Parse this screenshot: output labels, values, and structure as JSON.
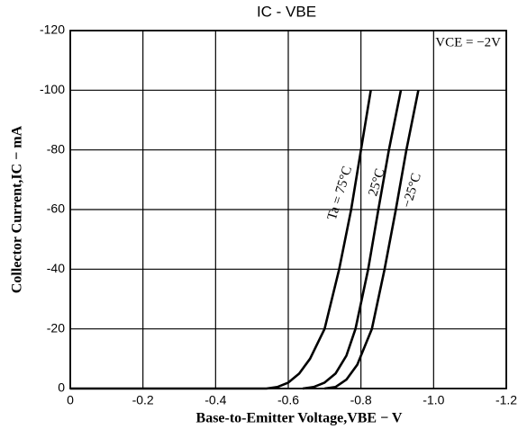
{
  "chart_data": {
    "type": "line",
    "title": "IC  -  VBE",
    "x_label": "Base-to-Emitter Voltage,VBE − V",
    "y_label": "Collector Current,IC − mA",
    "annotations": [
      "VCE = −2V",
      "Ta = 75°C",
      "25°C",
      "−25°C"
    ],
    "xlim": [
      0,
      -1.2
    ],
    "xticks": [
      0,
      -0.2,
      -0.4,
      -0.6,
      -0.8,
      {
        "value": -1,
        "label": "-1.0"
      },
      -1.2
    ],
    "ylim": [
      0,
      -120
    ],
    "yticks": [
      0,
      -20,
      -40,
      -60,
      -80,
      -100,
      -120
    ],
    "grid": true,
    "series": [
      {
        "name": "Ta = 75°C",
        "color": "#000000",
        "x": [
          0,
          -0.54,
          -0.57,
          -0.6,
          -0.63,
          -0.66,
          -0.7,
          -0.74,
          -0.773,
          -0.8,
          -0.827
        ],
        "values": [
          0,
          0,
          -0.5,
          -2,
          -5,
          -10,
          -20,
          -40,
          -60,
          -80,
          -100
        ]
      },
      {
        "name": "25°C",
        "color": "#000000",
        "x": [
          -0.64,
          -0.67,
          -0.7,
          -0.73,
          -0.76,
          -0.785,
          -0.82,
          -0.848,
          -0.877,
          -0.91
        ],
        "values": [
          0,
          -0.5,
          -2,
          -5,
          -11,
          -20,
          -40,
          -60,
          -80,
          -100
        ]
      },
      {
        "name": "−25°C",
        "color": "#000000",
        "x": [
          -0.7,
          -0.73,
          -0.76,
          -0.79,
          -0.83,
          -0.865,
          -0.896,
          -0.925,
          -0.958
        ],
        "values": [
          0,
          -0.5,
          -3,
          -8,
          -20,
          -40,
          -60,
          -80,
          -100
        ]
      }
    ]
  }
}
